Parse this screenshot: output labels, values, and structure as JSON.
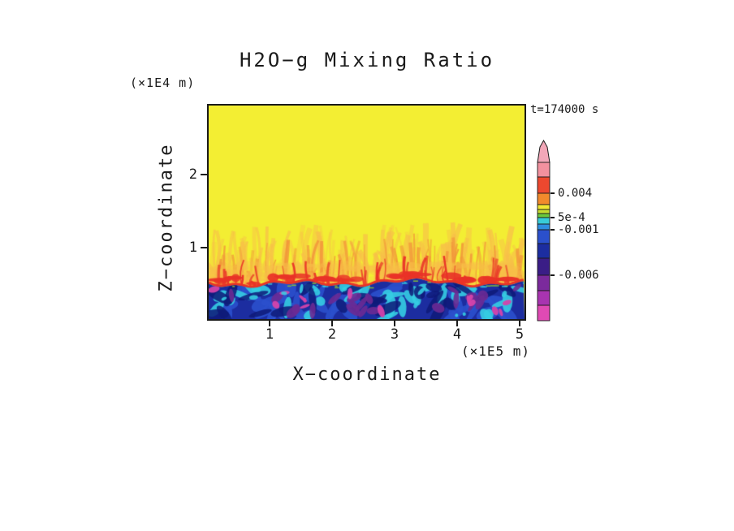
{
  "page": {
    "background": "#ffffff"
  },
  "chart_data": {
    "type": "heatmap",
    "title": "H2O−g Mixing Ratio",
    "time_label": "t=174000 s",
    "xlabel": "X−coordinate",
    "ylabel": "Z−coordinate",
    "x_unit_label": "(×1E5 m)",
    "y_unit_label": "(×1E4 m)",
    "x_ticks": [
      1,
      2,
      3,
      4,
      5
    ],
    "y_ticks": [
      1,
      2
    ],
    "x_range_1e5_m": [
      0,
      5.1
    ],
    "z_range_1e4_m": [
      0,
      2.95
    ],
    "field_colors": {
      "yellow": "#f3ee33",
      "orange_light": "#f8bf49",
      "orange": "#f2953a",
      "red": "#e93227",
      "navy": "#1c2da0",
      "darknavy": "#0e1a78",
      "blue": "#2b50cc",
      "cyan": "#35cde2",
      "purple": "#6b2a94",
      "magenta": "#d443ab",
      "green": "#8cc832"
    },
    "field_description": {
      "upper_region": {
        "z_above_1e4_m": 1.1,
        "description": "uniform yellow mixing ratio layer",
        "color": "#f3ee33"
      },
      "interface_band": {
        "z_range_1e4_m": [
          0.55,
          1.1
        ],
        "description": "orange convective plumes and streaks with red filaments over yellow background",
        "colors": [
          "#f8bf49",
          "#f2953a",
          "#e93227"
        ]
      },
      "interface_line": {
        "z_1e4_m": 0.52,
        "description": "thin red high-value layer across full width",
        "color": "#e93227"
      },
      "lower_region": {
        "z_below_1e4_m": 0.52,
        "description": "dark navy layer with turbulent cyan, blue, purple and magenta patches",
        "colors": [
          "#1c2da0",
          "#2b50cc",
          "#35cde2",
          "#6b2a94",
          "#d443ab",
          "#0e1a78"
        ]
      }
    },
    "colorbar": {
      "tip_color": "#f2a7b8",
      "labels": [
        "0.004",
        "5e-4",
        "-0.001",
        "-0.006"
      ],
      "segments_top_to_bottom": [
        {
          "color": "#f2919f",
          "h": 18
        },
        {
          "color": "#ed482f",
          "h": 20,
          "label": "0.004"
        },
        {
          "color": "#f28a2c",
          "h": 14
        },
        {
          "color": "#f2e832",
          "h": 6
        },
        {
          "color": "#c8dc30",
          "h": 5
        },
        {
          "color": "#6cc83c",
          "h": 5,
          "label": "5e-4"
        },
        {
          "color": "#38ccd8",
          "h": 8
        },
        {
          "color": "#2e8ee0",
          "h": 7,
          "label": "-0.001"
        },
        {
          "color": "#2b50cc",
          "h": 17
        },
        {
          "color": "#1c2da0",
          "h": 18
        },
        {
          "color": "#3a1d86",
          "h": 21,
          "label": "-0.006"
        },
        {
          "color": "#7b2a9c",
          "h": 19
        },
        {
          "color": "#a834b0",
          "h": 18
        },
        {
          "color": "#e04ab4",
          "h": 19
        }
      ]
    }
  }
}
